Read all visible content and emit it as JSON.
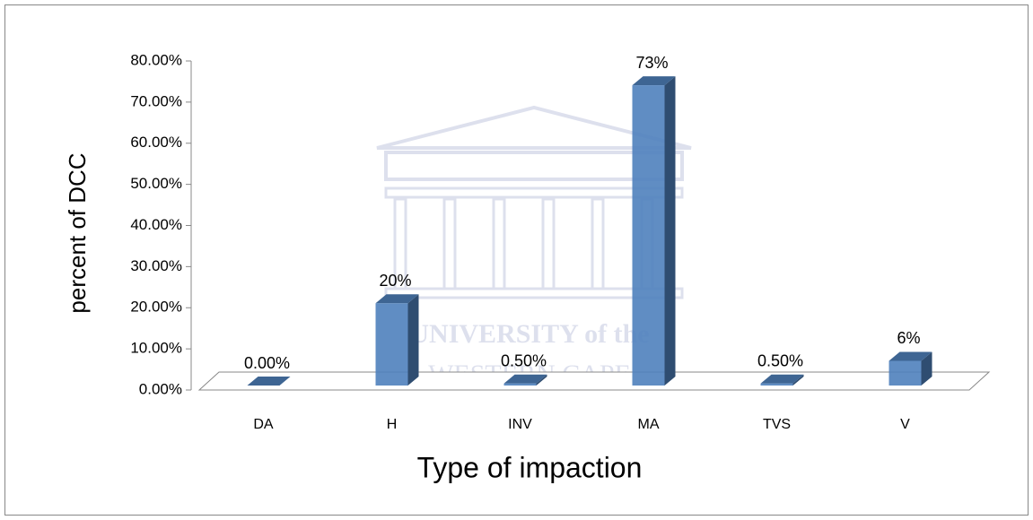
{
  "chart_data": {
    "type": "bar3d",
    "watermark": [
      "UNIVERSITY of the",
      "WESTERN CAPE"
    ],
    "xlabel": "Type of impaction",
    "ylabel": "percent of DCC",
    "categories": [
      "DA",
      "H",
      "INV",
      "MA",
      "TVS",
      "V"
    ],
    "values": [
      0,
      20,
      0.5,
      73,
      0.5,
      6
    ],
    "value_labels": [
      "0.00%",
      "20%",
      "0.50%",
      "73%",
      "0.50%",
      "6%"
    ],
    "color": "#4f81bd",
    "ylim": [
      0,
      80
    ],
    "yticks": [
      {
        "value": 0,
        "label": "0.00%"
      },
      {
        "value": 10,
        "label": "10.00%"
      },
      {
        "value": 20,
        "label": "20.00%"
      },
      {
        "value": 30,
        "label": "30.00%"
      },
      {
        "value": 40,
        "label": "40.00%"
      },
      {
        "value": 50,
        "label": "50.00%"
      },
      {
        "value": 60,
        "label": "60.00%"
      },
      {
        "value": 70,
        "label": "70.00%"
      },
      {
        "value": 80,
        "label": "80.00%"
      }
    ]
  }
}
